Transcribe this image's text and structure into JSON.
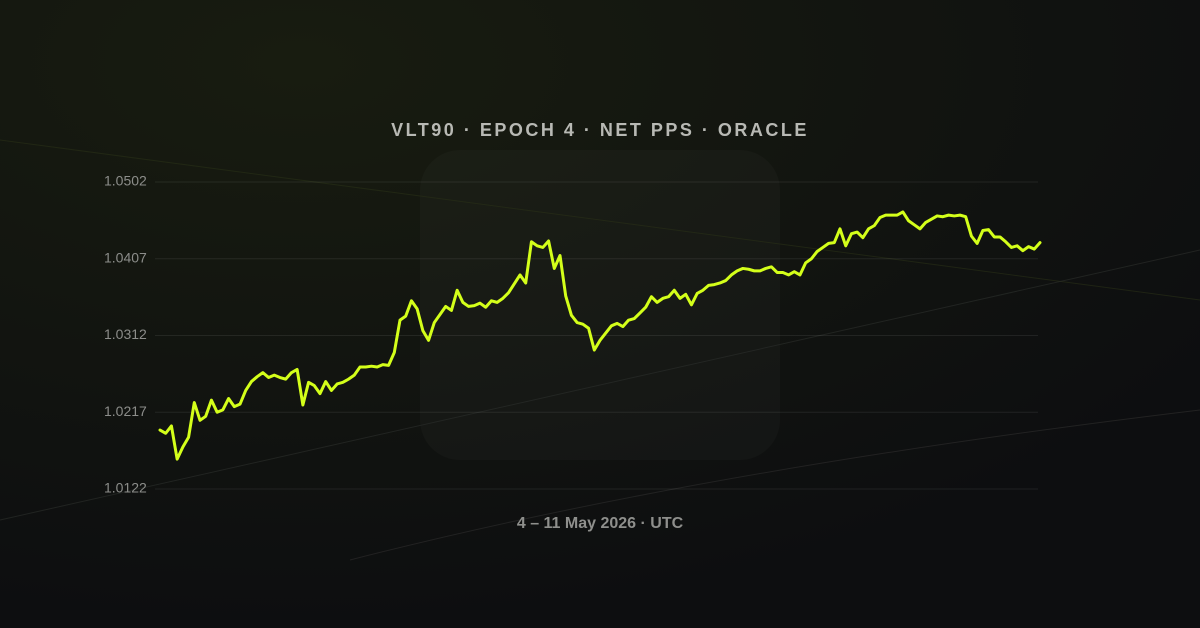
{
  "chart_data": {
    "type": "line",
    "title": "VLT90 · EPOCH 4 · NET PPS · ORACLE",
    "x_label": "4 – 11 May 2026 · UTC",
    "ylim": [
      1.0122,
      1.0502
    ],
    "yticks": [
      1.0122,
      1.0217,
      1.0312,
      1.0407,
      1.0502
    ],
    "grid": true,
    "color": "#d4ff1a",
    "values": [
      1.0195,
      1.0191,
      1.02,
      1.0159,
      1.0174,
      1.0186,
      1.0229,
      1.0207,
      1.0212,
      1.0232,
      1.0217,
      1.022,
      1.0234,
      1.0224,
      1.0227,
      1.0244,
      1.0255,
      1.0261,
      1.0266,
      1.026,
      1.0263,
      1.026,
      1.0258,
      1.0266,
      1.027,
      1.0226,
      1.0254,
      1.025,
      1.024,
      1.0255,
      1.0244,
      1.0252,
      1.0254,
      1.0258,
      1.0263,
      1.0273,
      1.0273,
      1.0274,
      1.0273,
      1.0276,
      1.0275,
      1.0291,
      1.0331,
      1.0336,
      1.0355,
      1.0345,
      1.0318,
      1.0306,
      1.0328,
      1.0338,
      1.0348,
      1.0343,
      1.0368,
      1.0353,
      1.0348,
      1.0349,
      1.0352,
      1.0347,
      1.0355,
      1.0353,
      1.0358,
      1.0365,
      1.0376,
      1.0387,
      1.0377,
      1.0428,
      1.0423,
      1.0421,
      1.0429,
      1.0395,
      1.0411,
      1.0361,
      1.0337,
      1.0328,
      1.0326,
      1.0321,
      1.0294,
      1.0306,
      1.0315,
      1.0324,
      1.0327,
      1.0323,
      1.0331,
      1.0333,
      1.034,
      1.0347,
      1.036,
      1.0353,
      1.0358,
      1.036,
      1.0368,
      1.0358,
      1.0363,
      1.035,
      1.0364,
      1.0368,
      1.0374,
      1.0375,
      1.0377,
      1.038,
      1.0387,
      1.0392,
      1.0395,
      1.0394,
      1.0392,
      1.0392,
      1.0395,
      1.0397,
      1.039,
      1.039,
      1.0387,
      1.0391,
      1.0387,
      1.0402,
      1.0407,
      1.0416,
      1.0421,
      1.0426,
      1.0427,
      1.0444,
      1.0423,
      1.0438,
      1.044,
      1.0433,
      1.0444,
      1.0448,
      1.0458,
      1.0461,
      1.0461,
      1.0461,
      1.0465,
      1.0454,
      1.0449,
      1.0444,
      1.0452,
      1.0456,
      1.046,
      1.0459,
      1.0461,
      1.046,
      1.0461,
      1.0459,
      1.0435,
      1.0426,
      1.0442,
      1.0443,
      1.0434,
      1.0434,
      1.0428,
      1.0421,
      1.0423,
      1.0417,
      1.0422,
      1.0419,
      1.0427
    ]
  }
}
